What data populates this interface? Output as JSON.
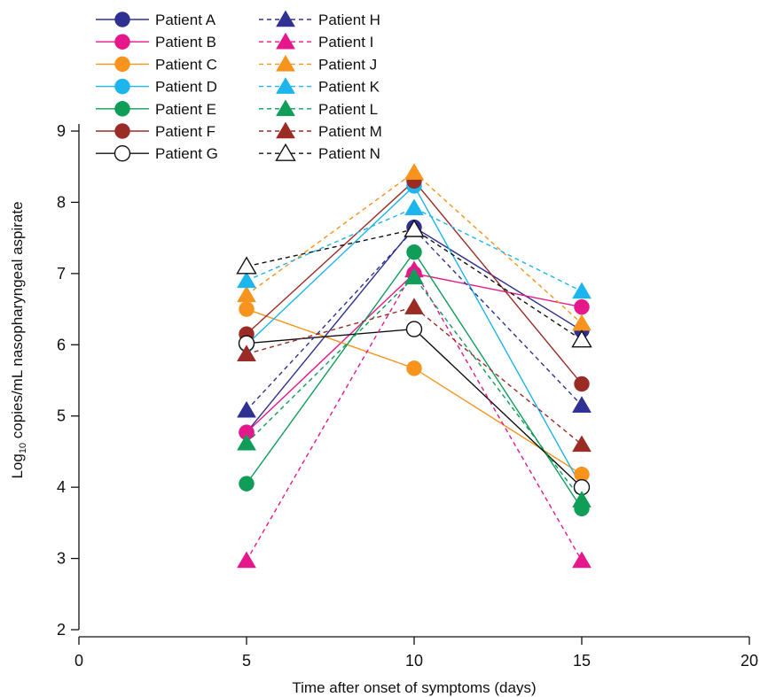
{
  "chart_data": {
    "type": "line",
    "xlabel": "Time after onset of symptoms (days)",
    "ylabel": {
      "prefix": "Log",
      "sub": "10",
      "suffix": " copies/mL nasopharyngeal aspirate"
    },
    "xlim": [
      0,
      20
    ],
    "ylim": [
      2,
      9
    ],
    "xticks": [
      "0",
      "5",
      "10",
      "15",
      "20"
    ],
    "yticks": [
      "2",
      "3",
      "4",
      "5",
      "6",
      "7",
      "8",
      "9"
    ],
    "grid": false,
    "legend_position": "top-left",
    "x": [
      5,
      10,
      15
    ],
    "series": [
      {
        "name": "Patient A",
        "marker": "circle",
        "dash": false,
        "color": "#2e3192",
        "values": [
          4.77,
          7.65,
          6.2
        ]
      },
      {
        "name": "Patient B",
        "marker": "circle",
        "dash": false,
        "color": "#e6178b",
        "values": [
          4.77,
          7.0,
          6.53
        ]
      },
      {
        "name": "Patient C",
        "marker": "circle",
        "dash": false,
        "color": "#f7941d",
        "values": [
          6.5,
          5.67,
          4.18
        ]
      },
      {
        "name": "Patient D",
        "marker": "circle",
        "dash": false,
        "color": "#1cb5ed",
        "values": [
          6.0,
          8.23,
          4.0
        ]
      },
      {
        "name": "Patient E",
        "marker": "circle",
        "dash": false,
        "color": "#0f9d58",
        "values": [
          4.05,
          7.3,
          3.7
        ]
      },
      {
        "name": "Patient F",
        "marker": "circle",
        "dash": false,
        "color": "#9b2b25",
        "values": [
          6.15,
          8.3,
          5.45
        ]
      },
      {
        "name": "Patient G",
        "marker": "circle-open",
        "dash": false,
        "color": "#111111",
        "values": [
          6.02,
          6.22,
          4.0
        ]
      },
      {
        "name": "Patient H",
        "marker": "triangle",
        "dash": true,
        "color": "#2e3192",
        "values": [
          5.08,
          7.62,
          5.15
        ]
      },
      {
        "name": "Patient I",
        "marker": "triangle",
        "dash": true,
        "color": "#e6178b",
        "values": [
          2.97,
          7.05,
          2.97
        ]
      },
      {
        "name": "Patient J",
        "marker": "triangle",
        "dash": true,
        "color": "#f7941d",
        "values": [
          6.7,
          8.42,
          6.3
        ]
      },
      {
        "name": "Patient K",
        "marker": "triangle",
        "dash": true,
        "color": "#1cb5ed",
        "values": [
          6.9,
          7.92,
          6.75
        ]
      },
      {
        "name": "Patient L",
        "marker": "triangle",
        "dash": true,
        "color": "#0f9d58",
        "values": [
          4.62,
          6.95,
          3.82
        ]
      },
      {
        "name": "Patient M",
        "marker": "triangle",
        "dash": true,
        "color": "#9b2b25",
        "values": [
          5.87,
          6.53,
          4.6
        ]
      },
      {
        "name": "Patient N",
        "marker": "triangle-open",
        "dash": true,
        "color": "#111111",
        "values": [
          7.1,
          7.62,
          6.07
        ]
      }
    ]
  }
}
